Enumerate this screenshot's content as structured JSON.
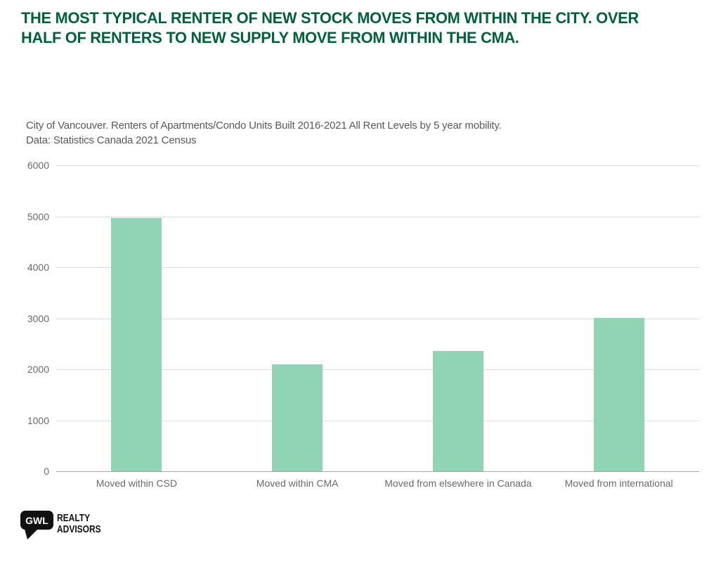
{
  "header": {
    "title_lines": [
      "THE MOST TYPICAL RENTER OF NEW STOCK MOVES FROM WITHIN THE CITY. OVER",
      "HALF OF RENTERS TO NEW SUPPLY MOVE FROM WITHIN THE CMA."
    ],
    "title_color": "#00613a"
  },
  "subtitle": {
    "line1": "City of Vancouver. Renters of Apartments/Condo Units Built 2016-2021 All Rent Levels by 5 year mobility.",
    "line2": "Data: Statistics Canada 2021 Census"
  },
  "chart_data": {
    "type": "bar",
    "title": "",
    "xlabel": "",
    "ylabel": "",
    "categories": [
      "Moved within CSD",
      "Moved within CMA",
      "Moved from elsewhere in Canada",
      "Moved from international"
    ],
    "values": [
      4970,
      2090,
      2360,
      3010
    ],
    "ylim": [
      0,
      6000
    ],
    "yticks": [
      0,
      1000,
      2000,
      3000,
      4000,
      5000,
      6000
    ],
    "grid": true,
    "legend": "none",
    "bar_color": "#90d4b5",
    "gridline_color": "#dcdcdc",
    "axis_line_color": "#a9a9a9",
    "tick_label_color": "#6a6a6a"
  },
  "footer": {
    "logo": {
      "bubble_text": "GWL",
      "line1": "REALTY",
      "line2": "ADVISORS"
    }
  }
}
